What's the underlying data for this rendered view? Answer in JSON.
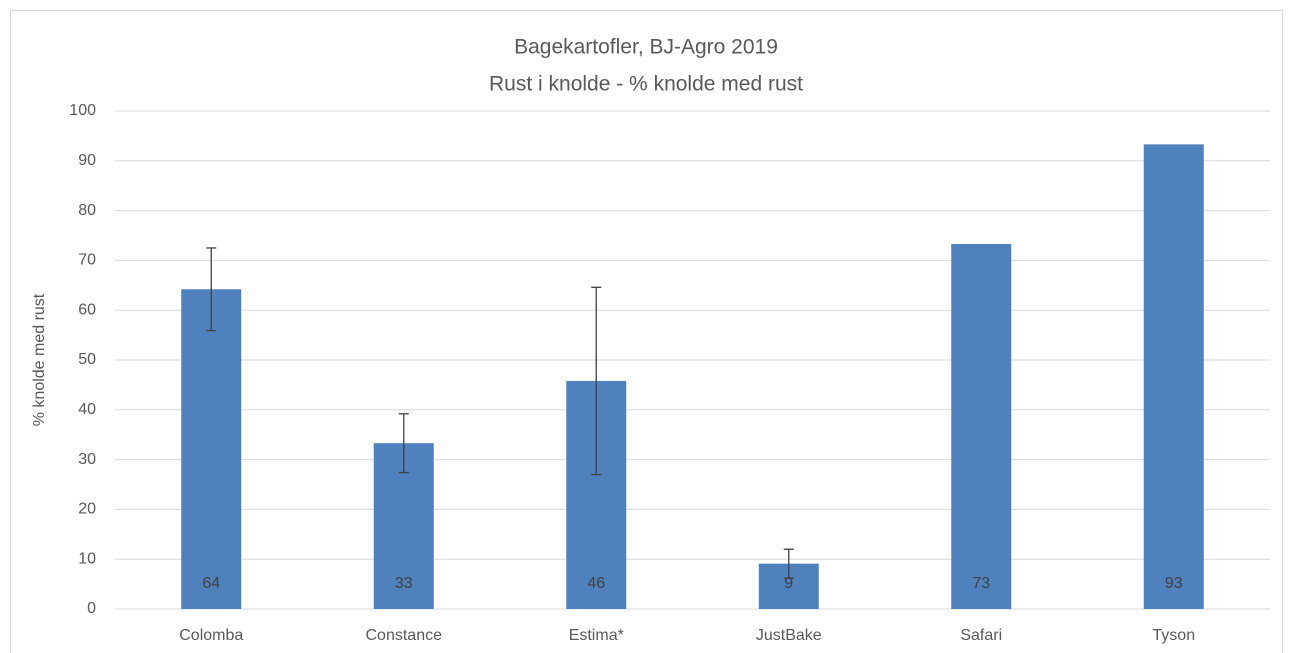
{
  "chart_data": {
    "type": "bar",
    "title": [
      "Bagekartofler, BJ-Agro 2019",
      "Rust i knolde -  % knolde med rust"
    ],
    "y_label": "% knolde med rust",
    "categories": [
      "Colomba",
      "Constance",
      "Estima*",
      "JustBake",
      "Safari",
      "Tyson"
    ],
    "values": [
      64.2,
      33.3,
      45.8,
      9.1,
      73.3,
      93.3
    ],
    "value_labels": [
      "64",
      "33",
      "46",
      "9",
      "73",
      "93"
    ],
    "errors": [
      8.3,
      5.9,
      18.8,
      2.9,
      null,
      null
    ],
    "color": "#4f81bd",
    "ylim": [
      0,
      100
    ],
    "yticks": [
      0,
      10,
      20,
      30,
      40,
      50,
      60,
      70,
      80,
      90,
      100
    ],
    "grid": true
  }
}
